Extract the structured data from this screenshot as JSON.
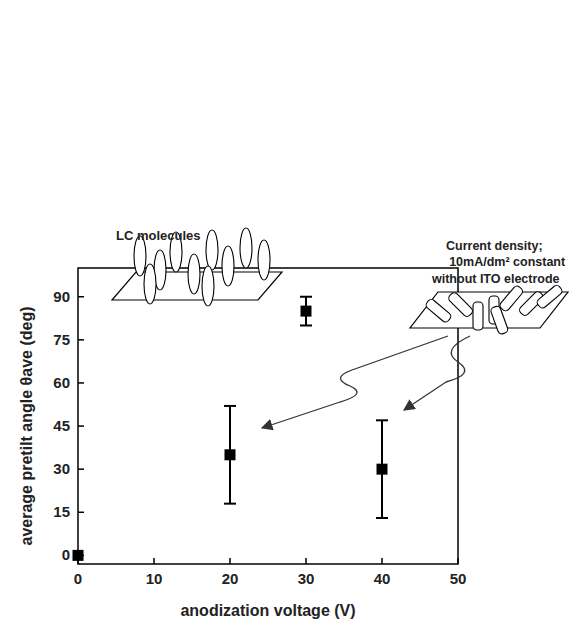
{
  "chart_data": {
    "type": "scatter",
    "x_label": "anodization voltage (V)",
    "y_label": "average pretilt angle θave (deg)",
    "x": [
      0,
      20,
      30,
      40
    ],
    "values": [
      0,
      35,
      85,
      30
    ],
    "errors": [
      0,
      17,
      5,
      17
    ],
    "color": "#000000",
    "marker": "square",
    "xlim": [
      0,
      50
    ],
    "xticks": [
      0,
      10,
      20,
      30,
      40,
      50
    ],
    "ylim": [
      -3,
      100
    ],
    "yticks": [
      0,
      15,
      30,
      45,
      60,
      75,
      90
    ],
    "grid": false,
    "annotations": [
      "LC molecules",
      "Current density;",
      "10mA/dm² constant",
      "without ITO electrode"
    ]
  }
}
